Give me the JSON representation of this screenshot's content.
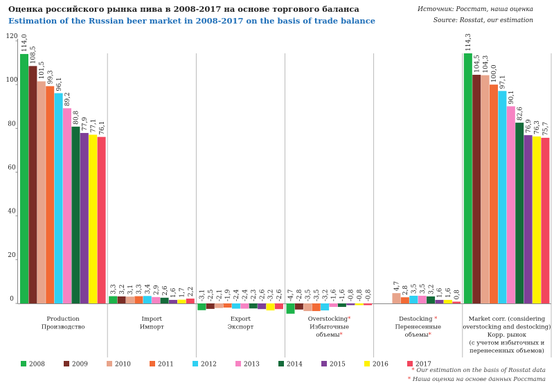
{
  "title_ru": "Оценка российского рынка пива в 2008-2017 на основе торгового баланса",
  "title_en": "Estimation of the Russian beer market in 2008-2017 on the basis of trade balance",
  "source_ru": "Источник: Росстат, наша оценка",
  "source_en": "Source: Rosstat, our estimation",
  "note_star": "*",
  "note_en": "Our estimation on the basis of Rosstat data",
  "note_ru": "Наша оценка на основе данных Росстата",
  "chart_data": {
    "type": "bar",
    "ylim": [
      0,
      120
    ],
    "yticks": [
      0,
      20,
      40,
      60,
      80,
      100,
      120
    ],
    "grid": false,
    "legend_position": "bottom",
    "categories": [
      {
        "lines": [
          "Production",
          "Производство"
        ],
        "star_lines": []
      },
      {
        "lines": [
          "Import",
          "Импорт"
        ],
        "star_lines": []
      },
      {
        "lines": [
          "Export",
          "Экспорт"
        ],
        "star_lines": []
      },
      {
        "lines": [
          "Overstocking*",
          "Избыточные",
          "объемы*"
        ],
        "star_lines": [
          0,
          2
        ]
      },
      {
        "lines": [
          "Destocking *",
          "Перенесенные",
          "объемы*"
        ],
        "star_lines": [
          0,
          2
        ]
      },
      {
        "lines": [
          "Market corr. (considering",
          "overstocking and destocking)",
          "Корр. рынок",
          "(с учетом избыточных и",
          "перенесенных объемов)"
        ],
        "star_lines": []
      }
    ],
    "series": [
      {
        "name": "2008",
        "color": "#1db34a",
        "values": [
          114.0,
          3.3,
          -3.1,
          -4.7,
          0,
          114.3
        ],
        "labels": [
          "114,0",
          "3,3",
          "-3,1",
          "-4,7",
          "",
          "114,3"
        ]
      },
      {
        "name": "2009",
        "color": "#7b2d26",
        "values": [
          108.5,
          3.2,
          -2.5,
          -2.8,
          0,
          104.5
        ],
        "labels": [
          "108,5",
          "3,2",
          "-2,5",
          "-2,8",
          "",
          "104,5"
        ]
      },
      {
        "name": "2010",
        "color": "#e8a48b",
        "values": [
          101.5,
          3.1,
          -2.1,
          -3.5,
          4.7,
          104.3
        ],
        "labels": [
          "101,5",
          "3,1",
          "-2,1",
          "-3,5",
          "4,7",
          "104,3"
        ]
      },
      {
        "name": "2011",
        "color": "#f26a35",
        "values": [
          99.3,
          3.3,
          -1.9,
          -3.5,
          2.8,
          100.0
        ],
        "labels": [
          "99,3",
          "3,3",
          "-1,9",
          "-3,5",
          "2,8",
          "100,0"
        ]
      },
      {
        "name": "2012",
        "color": "#2fd0f2",
        "values": [
          96.1,
          3.4,
          -2.4,
          -3.2,
          3.5,
          97.1
        ],
        "labels": [
          "96,1",
          "3,4",
          "-2,4",
          "-3,2",
          "3,5",
          "97,1"
        ]
      },
      {
        "name": "2013",
        "color": "#f783c3",
        "values": [
          89.2,
          2.9,
          -2.4,
          -1.6,
          3.5,
          90.1
        ],
        "labels": [
          "89,2",
          "2,9",
          "-2,4",
          "-1,6",
          "3,5",
          "90,1"
        ]
      },
      {
        "name": "2014",
        "color": "#146b3a",
        "values": [
          80.8,
          2.6,
          -2.3,
          -1.6,
          3.2,
          82.6
        ],
        "labels": [
          "80,8",
          "2,6",
          "-2,3",
          "-1,6",
          "3,2",
          "82,6"
        ]
      },
      {
        "name": "2015",
        "color": "#7e3f98",
        "values": [
          77.9,
          1.6,
          -2.6,
          -0.8,
          1.6,
          76.9
        ],
        "labels": [
          "77,9",
          "1,6",
          "-2,6",
          "-0,8",
          "1,6",
          "76,9"
        ]
      },
      {
        "name": "2016",
        "color": "#fff200",
        "values": [
          77.1,
          1.7,
          -3.2,
          -0.8,
          1.6,
          76.3
        ],
        "labels": [
          "77,1",
          "1,7",
          "-3,2",
          "-0,8",
          "1,6",
          "76,3"
        ]
      },
      {
        "name": "2017",
        "color": "#f2465d",
        "values": [
          76.1,
          2.2,
          -2.6,
          -0.8,
          0.8,
          75.7
        ],
        "labels": [
          "76,1",
          "2,2",
          "-2,6",
          "-0,8",
          "0,8",
          "75,7"
        ]
      }
    ]
  }
}
